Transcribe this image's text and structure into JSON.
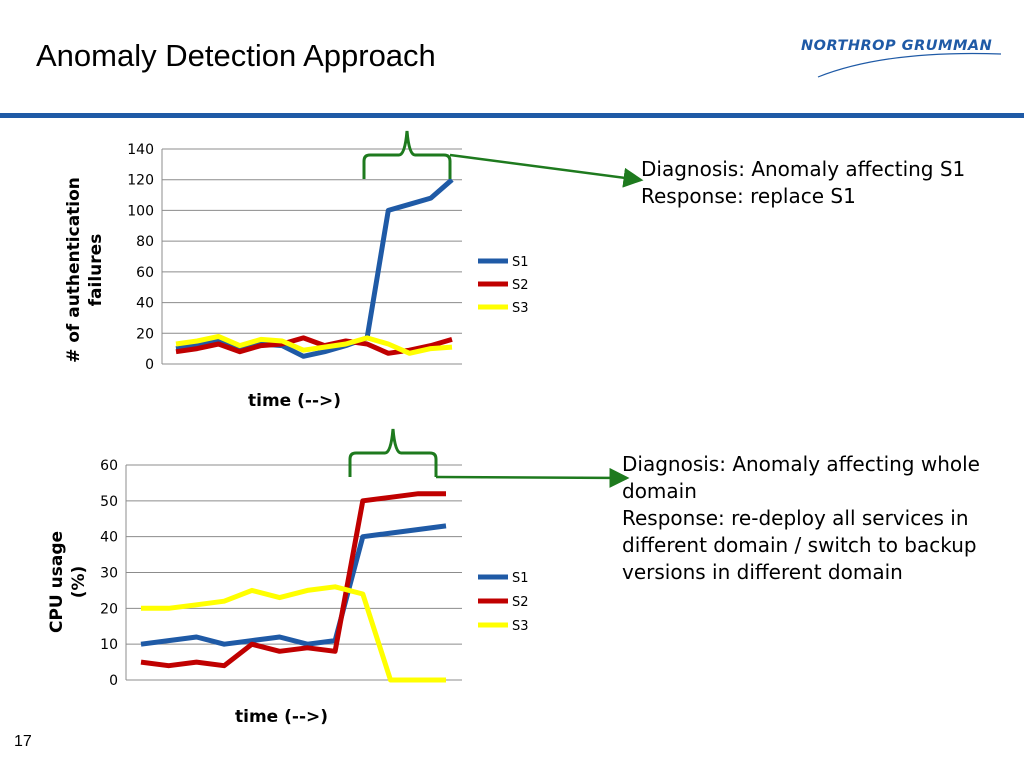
{
  "slide": {
    "title": "Anomaly Detection Approach",
    "logo_text": "NORTHROP GRUMMAN",
    "page_number": "17",
    "accent_color": "#1f5aa6"
  },
  "annotations": {
    "top": [
      "Diagnosis: Anomaly affecting S1",
      "Response: replace S1"
    ],
    "bottom": [
      "Diagnosis: Anomaly affecting whole",
      "domain",
      "Response: re-deploy all services in",
      "different domain / switch to backup",
      "versions in different domain"
    ],
    "arrow_color": "#1e7a1e"
  },
  "chart_data": [
    {
      "type": "line",
      "xlabel": "time (-->)",
      "ylabel": "# of authentication failures",
      "ylim": [
        0,
        140
      ],
      "yticks": [
        0,
        20,
        40,
        60,
        80,
        100,
        120,
        140
      ],
      "grid": true,
      "legend": "right",
      "x": [
        1,
        2,
        3,
        4,
        5,
        6,
        7,
        8,
        9,
        10,
        11,
        12,
        13,
        14
      ],
      "series": [
        {
          "name": "S1",
          "color": "#1f5aa6",
          "values": [
            10,
            12,
            15,
            10,
            13,
            12,
            5,
            8,
            12,
            17,
            100,
            104,
            108,
            120
          ]
        },
        {
          "name": "S2",
          "color": "#c00000",
          "values": [
            8,
            10,
            13,
            8,
            12,
            13,
            17,
            12,
            15,
            13,
            7,
            9,
            12,
            16
          ]
        },
        {
          "name": "S3",
          "color": "#ffff00",
          "values": [
            13,
            15,
            18,
            12,
            16,
            15,
            9,
            11,
            13,
            17,
            13,
            7,
            10,
            11
          ]
        }
      ]
    },
    {
      "type": "line",
      "xlabel": "time (-->)",
      "ylabel": "CPU usage (%)",
      "ylim": [
        0,
        60
      ],
      "yticks": [
        0,
        10,
        20,
        30,
        40,
        50,
        60
      ],
      "grid": true,
      "legend": "right",
      "x": [
        1,
        2,
        3,
        4,
        5,
        6,
        7,
        8,
        9,
        10,
        11,
        12
      ],
      "series": [
        {
          "name": "S1",
          "color": "#1f5aa6",
          "values": [
            10,
            11,
            12,
            10,
            11,
            12,
            10,
            11,
            40,
            41,
            42,
            43
          ]
        },
        {
          "name": "S2",
          "color": "#c00000",
          "values": [
            5,
            4,
            5,
            4,
            10,
            8,
            9,
            8,
            50,
            51,
            52,
            52
          ]
        },
        {
          "name": "S3",
          "color": "#ffff00",
          "values": [
            20,
            20,
            21,
            22,
            25,
            23,
            25,
            26,
            24,
            0,
            0,
            0
          ]
        }
      ]
    }
  ]
}
